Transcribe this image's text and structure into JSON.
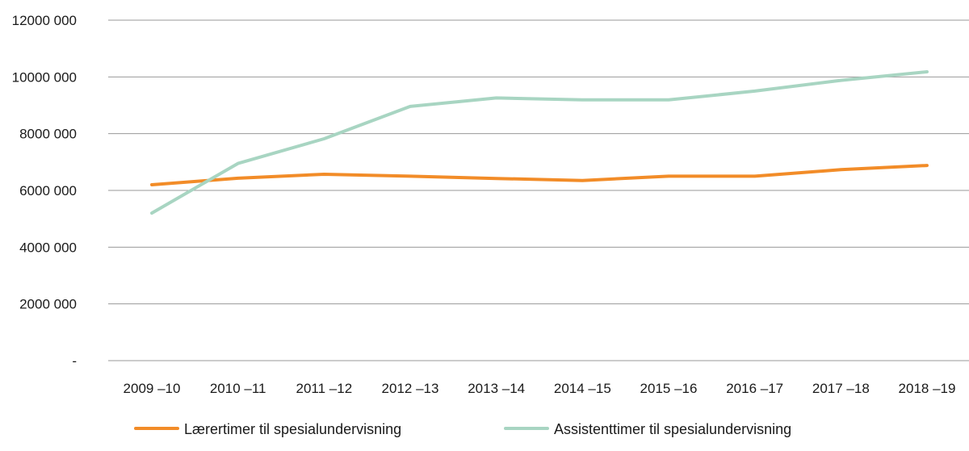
{
  "chart_data": {
    "type": "line",
    "categories": [
      "2009 –10",
      "2010 –11",
      "2011 –12",
      "2012 –13",
      "2013 –14",
      "2014 –15",
      "2015 –16",
      "2016 –17",
      "2017 –18",
      "2018 –19"
    ],
    "series": [
      {
        "name": "Lærertimer til spesialundervisning",
        "color": "#f28c28",
        "values": [
          6200000,
          6430000,
          6570000,
          6500000,
          6420000,
          6350000,
          6500000,
          6500000,
          6730000,
          6880000
        ]
      },
      {
        "name": "Assistenttimer til spesialundervisning",
        "color": "#a8d5c2",
        "values": [
          5200000,
          6950000,
          7820000,
          8960000,
          9260000,
          9190000,
          9190000,
          9500000,
          9880000,
          10180000
        ]
      }
    ],
    "yticks": [
      0,
      2000000,
      4000000,
      6000000,
      8000000,
      10000000,
      12000000
    ],
    "ytick_labels": [
      "-",
      "2000 000",
      "4000 000",
      "6000 000",
      "8000 000",
      "10000 000",
      "12000 000"
    ],
    "ylim": [
      0,
      12000000
    ],
    "grid": true,
    "legend_position": "bottom"
  }
}
